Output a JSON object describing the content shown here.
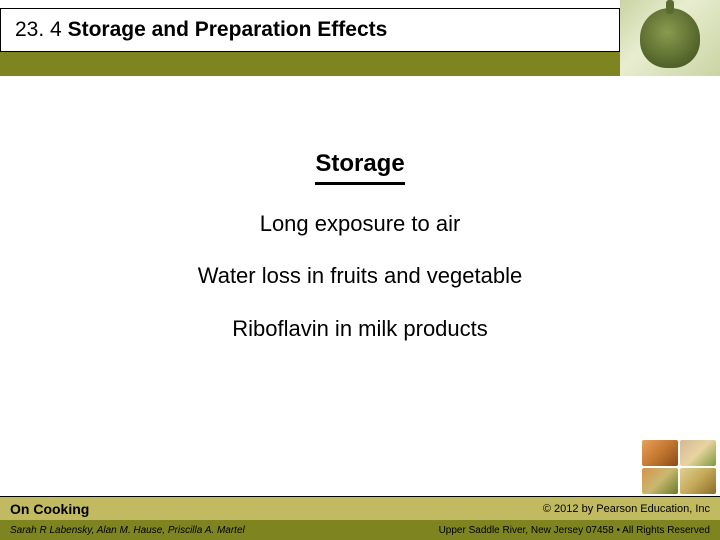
{
  "header": {
    "section_number": "23. 4",
    "section_title": "Storage and Preparation Effects"
  },
  "content": {
    "heading": "Storage",
    "bullets": [
      "Long exposure to air",
      "Water loss in fruits and vegetable",
      "Riboflavin in milk products"
    ]
  },
  "footer": {
    "book_title": "On Cooking",
    "authors": "Sarah R Labensky, Alan M. Hause, Priscilla A. Martel",
    "copyright": "© 2012 by Pearson Education, Inc",
    "address": "Upper Saddle River, New Jersey 07458 • All Rights Reserved"
  },
  "colors": {
    "olive_dark": "#7e841f",
    "olive_light": "#c1ba61",
    "background": "#ffffff",
    "text": "#000000"
  }
}
